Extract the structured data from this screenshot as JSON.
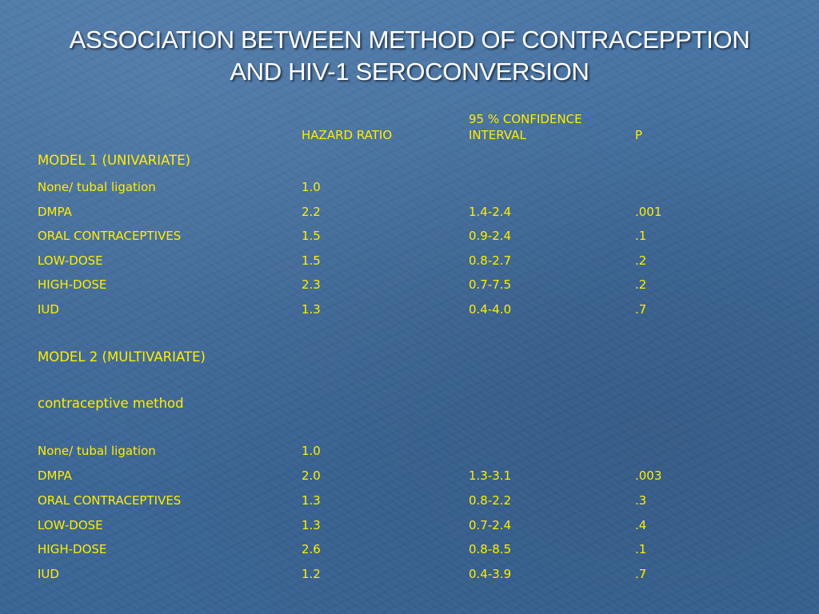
{
  "title": {
    "line1": "ASSOCIATION BETWEEN METHOD OF CONTRACEPPTION",
    "line2": "AND HIV-1 SEROCONVERSION"
  },
  "header": {
    "hazard_ratio": "HAZARD RATIO",
    "ci_line1": "95 % CONFIDENCE",
    "ci_line2": "INTERVAL",
    "p": "P"
  },
  "model1": {
    "label": "MODEL 1 (UNIVARIATE)",
    "rows": [
      {
        "method": "None/ tubal ligation",
        "hr": "1.0",
        "ci": "",
        "p": ""
      },
      {
        "method": "DMPA",
        "hr": "2.2",
        "ci": "1.4-2.4",
        "p": ".001"
      },
      {
        "method": "ORAL CONTRACEPTIVES",
        "hr": "1.5",
        "ci": "0.9-2.4",
        "p": ".1"
      },
      {
        "method": "LOW-DOSE",
        "hr": "1.5",
        "ci": "0.8-2.7",
        "p": ".2"
      },
      {
        "method": "HIGH-DOSE",
        "hr": "2.3",
        "ci": "0.7-7.5",
        "p": ".2"
      },
      {
        "method": "IUD",
        "hr": "1.3",
        "ci": "0.4-4.0",
        "p": ".7"
      }
    ]
  },
  "model2": {
    "label": "MODEL 2 (MULTIVARIATE)",
    "sublabel": "contraceptive method",
    "rows": [
      {
        "method": "None/ tubal ligation",
        "hr": "1.0",
        "ci": "",
        "p": ""
      },
      {
        "method": "DMPA",
        "hr": "2.0",
        "ci": "1.3-3.1",
        "p": ".003"
      },
      {
        "method": "ORAL CONTRACEPTIVES",
        "hr": "1.3",
        "ci": "0.8-2.2",
        "p": ".3"
      },
      {
        "method": "LOW-DOSE",
        "hr": "1.3",
        "ci": "0.7-2.4",
        "p": ".4"
      },
      {
        "method": "HIGH-DOSE",
        "hr": "2.6",
        "ci": "0.8-8.5",
        "p": ".1"
      },
      {
        "method": "IUD",
        "hr": "1.2",
        "ci": "0.4-3.9",
        "p": ".7"
      }
    ]
  },
  "colors": {
    "background": "#3f6a99",
    "title_text": "#ffffff",
    "table_text": "#ffee00"
  }
}
